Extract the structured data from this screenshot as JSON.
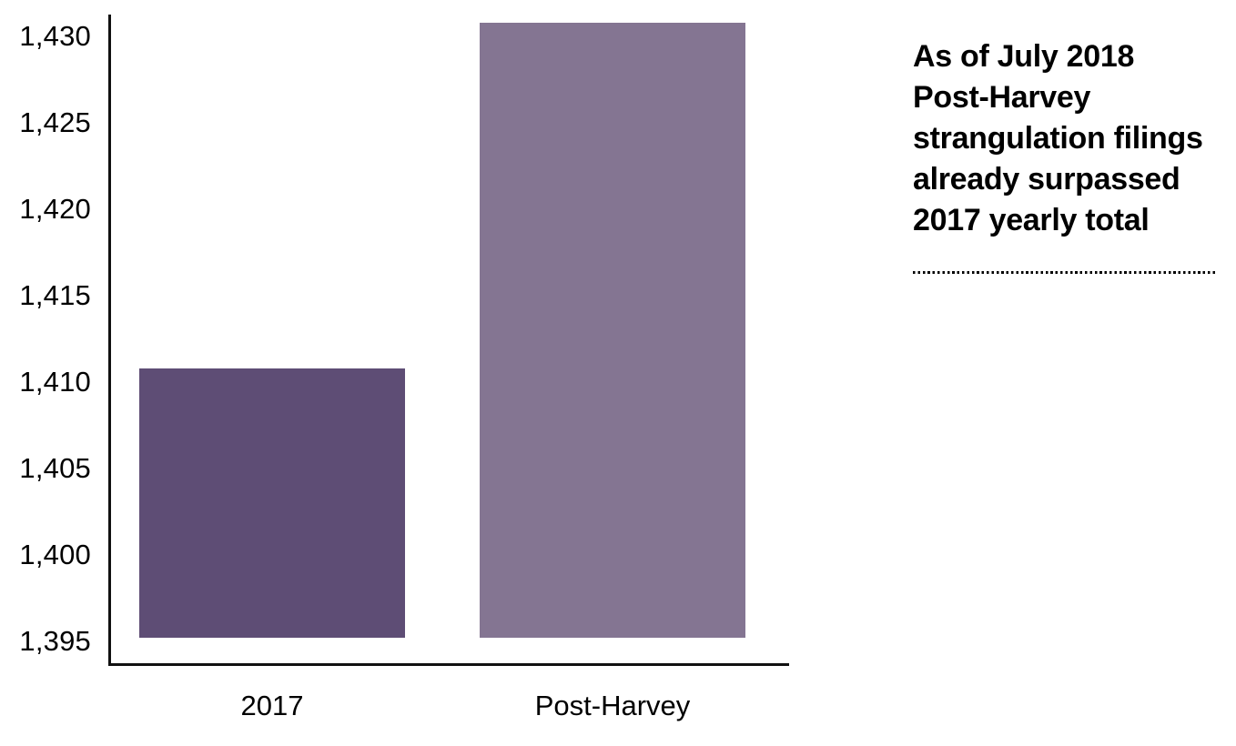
{
  "chart_data": {
    "type": "bar",
    "categories": [
      "2017",
      "Post-Harvey"
    ],
    "values": [
      1411,
      1431
    ],
    "title": "",
    "xlabel": "",
    "ylabel": "",
    "ylim": [
      1395,
      1431
    ],
    "y_ticks": [
      1395,
      1400,
      1405,
      1410,
      1415,
      1420,
      1425,
      1430
    ],
    "y_tick_labels": [
      "1,395",
      "1,400",
      "1,405",
      "1,410",
      "1,415",
      "1,420",
      "1,425",
      "1,430"
    ],
    "grid": false,
    "legend": false,
    "bar_colors": [
      "#5E4D75",
      "#847592"
    ],
    "axis_color": "#111111",
    "text_color": "#000000",
    "background_color": "#FFFFFF",
    "annotation": {
      "text": "As of July 2018 Post-Harvey strangulation filings already surpassed 2017 yearly total",
      "lines": [
        "As of July 2018",
        "Post-Harvey",
        "strangulation filings",
        "already surpassed",
        "2017 yearly total"
      ]
    }
  }
}
